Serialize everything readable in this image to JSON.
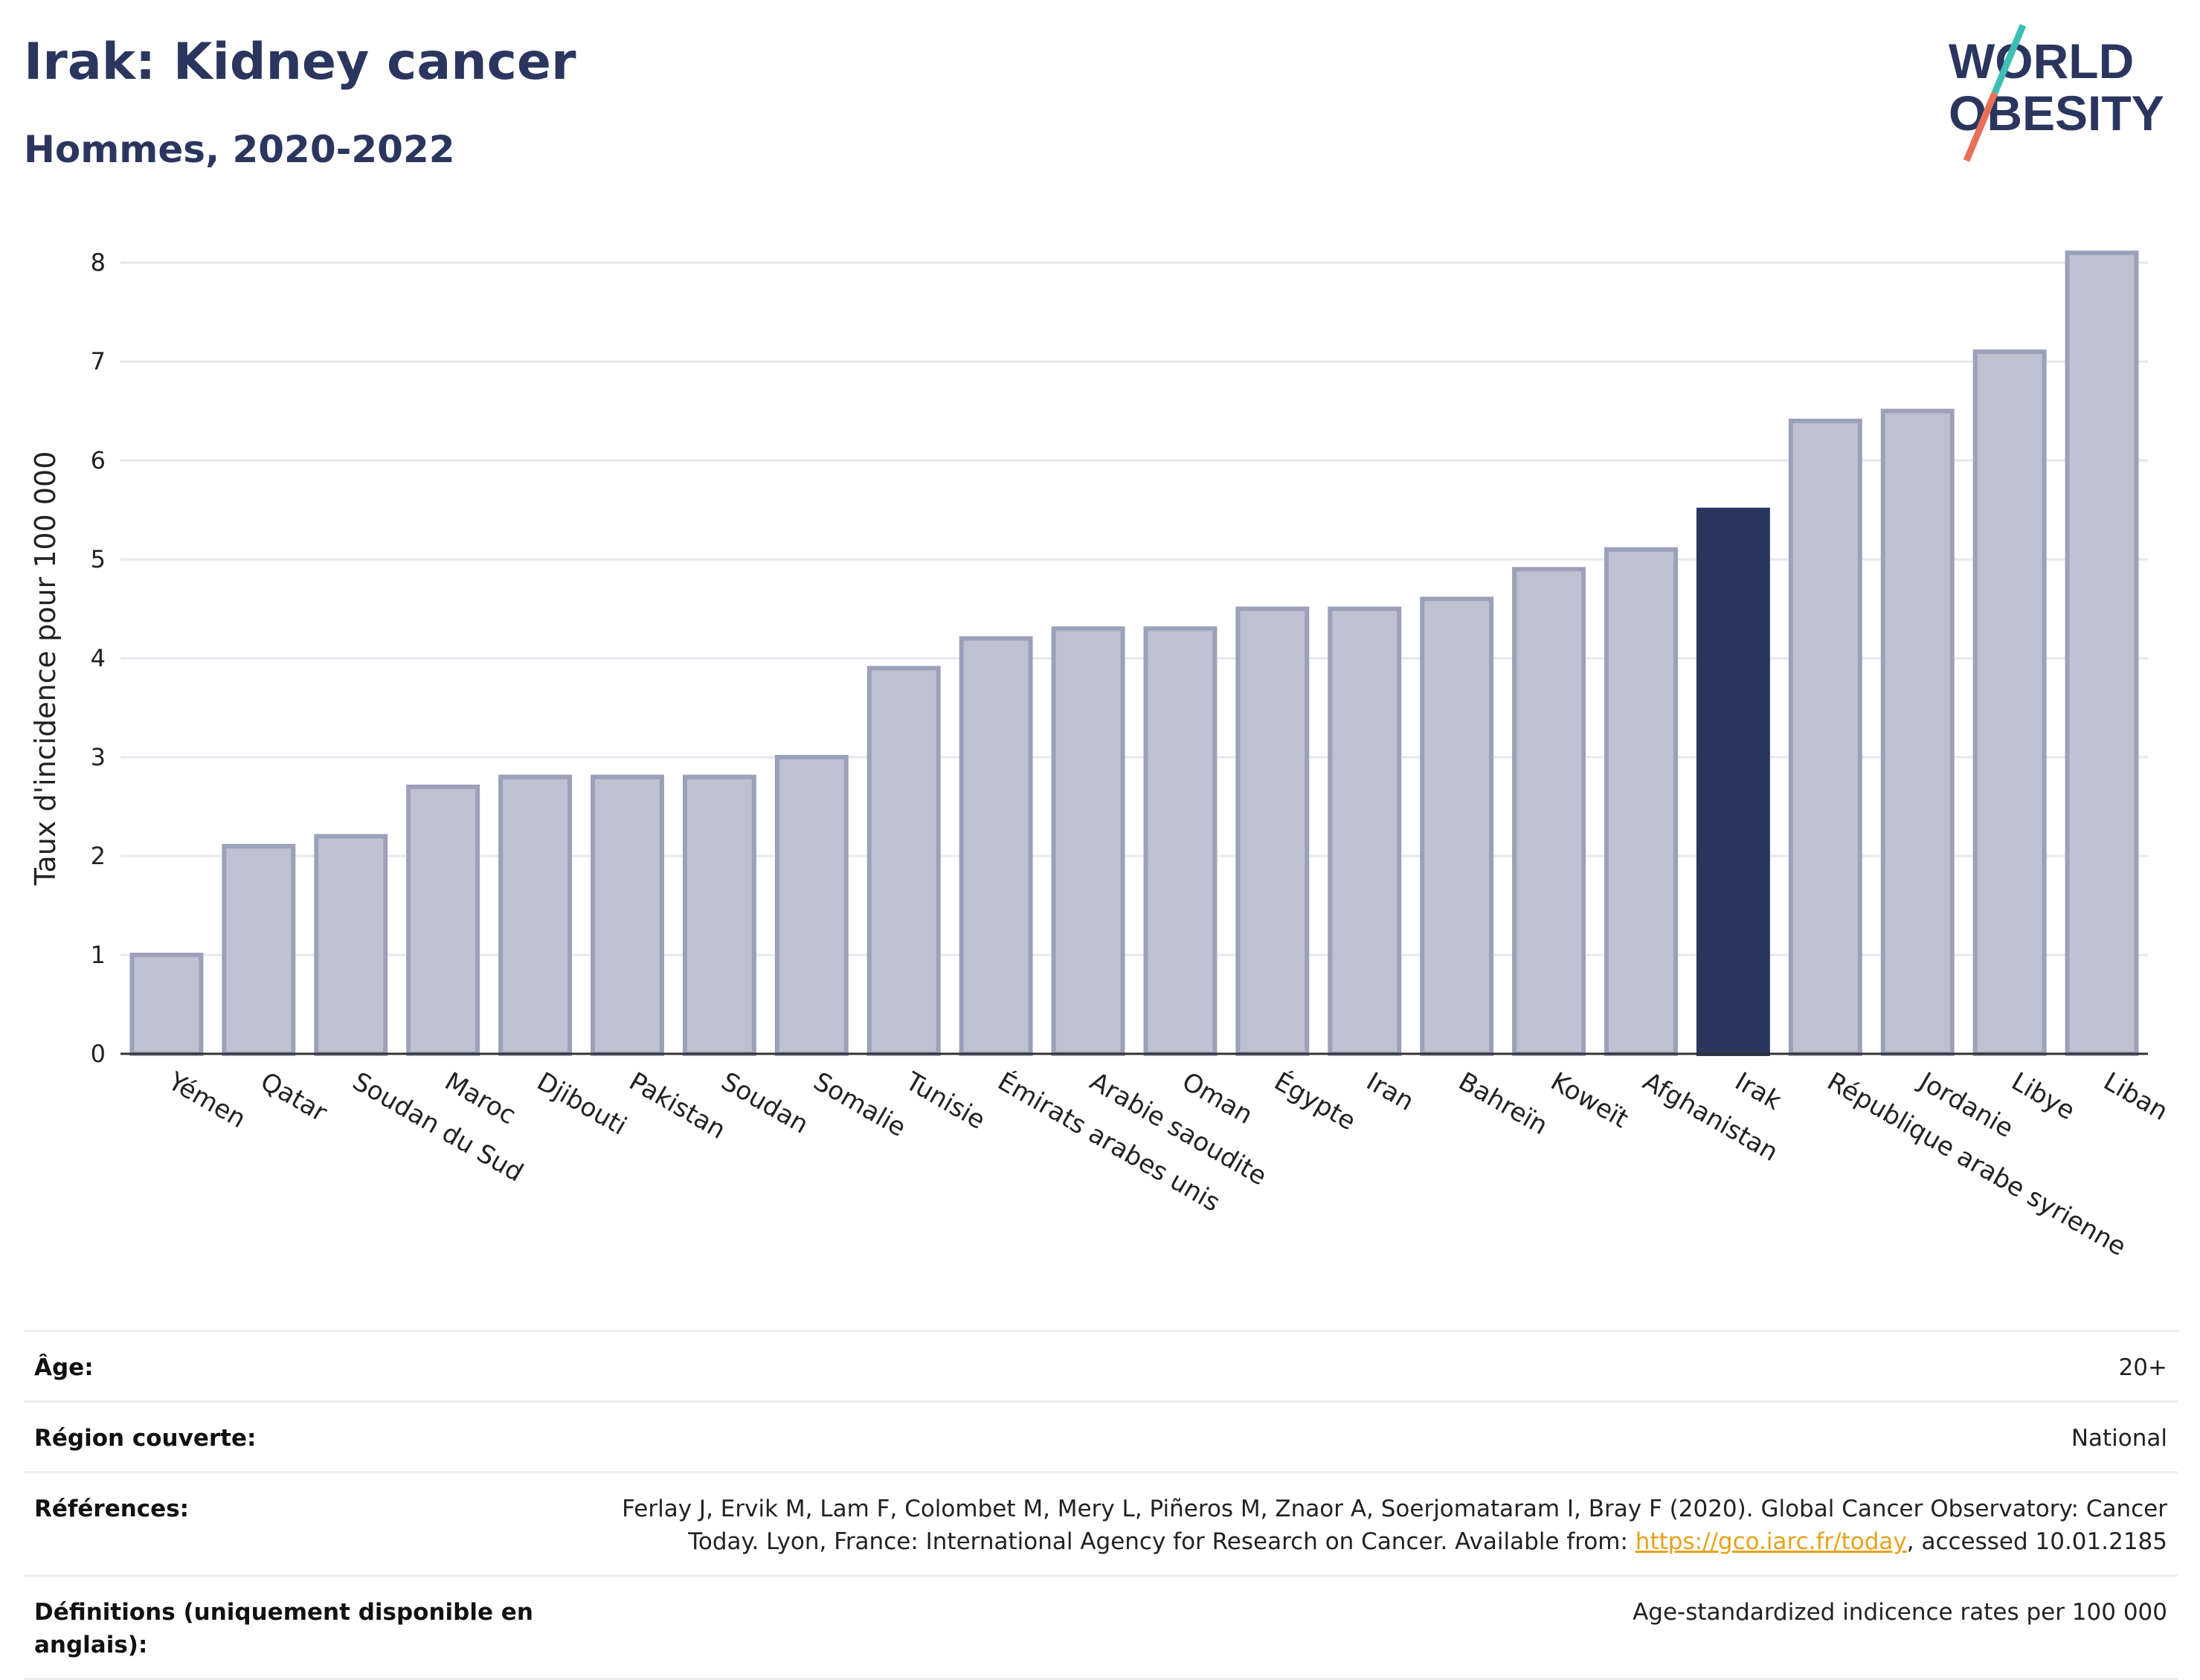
{
  "header": {
    "title": "Irak: Kidney cancer",
    "subtitle": "Hommes, 2020-2022"
  },
  "logo": {
    "line1": "WORLD",
    "line2": "OBESITY"
  },
  "chart_data": {
    "type": "bar",
    "ylabel": "Taux d'incidence pour 100 000",
    "xlabel": "",
    "ylim": [
      0,
      8.4
    ],
    "yticks": [
      0,
      1,
      2,
      3,
      4,
      5,
      6,
      7,
      8
    ],
    "grid": true,
    "categories": [
      "Yémen",
      "Qatar",
      "Soudan du Sud",
      "Maroc",
      "Djibouti",
      "Pakistan",
      "Soudan",
      "Somalie",
      "Tunisie",
      "Émirats arabes unis",
      "Arabie saoudite",
      "Oman",
      "Égypte",
      "Iran",
      "Bahreïn",
      "Koweït",
      "Afghanistan",
      "Irak",
      "République arabe syrienne",
      "Jordanie",
      "Libye",
      "Liban"
    ],
    "values": [
      1.0,
      2.1,
      2.2,
      2.7,
      2.8,
      2.8,
      2.8,
      3.0,
      3.9,
      4.2,
      4.3,
      4.3,
      4.5,
      4.5,
      4.6,
      4.9,
      5.1,
      5.5,
      6.4,
      6.5,
      7.1,
      8.1
    ],
    "highlight": "Irak",
    "colors": {
      "bar": "#bec1cf",
      "bar_edge": "#9ba1bb",
      "highlight": "#2b365f"
    }
  },
  "meta": {
    "rows": [
      {
        "key": "Âge:",
        "value": "20+"
      },
      {
        "key": "Région couverte:",
        "value": "National"
      },
      {
        "key": "Références:",
        "value": "Ferlay J, Ervik M, Lam F, Colombet M, Mery L, Piñeros M, Znaor A, Soerjomataram I, Bray F (2020). Global Cancer Observatory: Cancer Today. Lyon, France: International Agency for Research on Cancer. Available from: ",
        "link": "https://gco.iarc.fr/today",
        "suffix": ", accessed 10.01.2185"
      },
      {
        "key": "Définitions (uniquement disponible en anglais):",
        "value": "Age-standardized indicence rates per 100 000"
      }
    ]
  }
}
